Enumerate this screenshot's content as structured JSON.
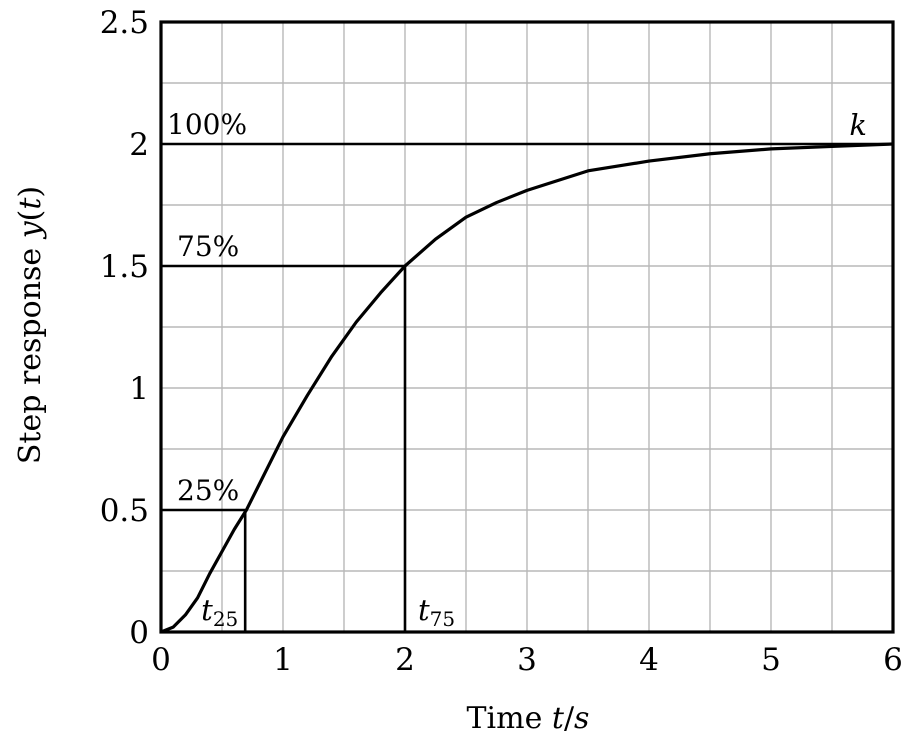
{
  "chart_data": {
    "type": "line",
    "title": "",
    "xlabel": {
      "prefix": "Time ",
      "var": "t",
      "sep": "/",
      "unit": "s"
    },
    "ylabel": {
      "prefix": "Step response ",
      "func": "y",
      "open": "(",
      "arg": "t",
      "close": ")"
    },
    "xlim": [
      0,
      6
    ],
    "ylim": [
      0,
      2.5
    ],
    "x_ticks": [
      "0",
      "1",
      "2",
      "3",
      "4",
      "5",
      "6"
    ],
    "y_ticks": [
      "0",
      "0.5",
      "1",
      "1.5",
      "2",
      "2.5"
    ],
    "grid": true,
    "grid_step": {
      "x": 0.5,
      "y": 0.25
    },
    "series": [
      {
        "x": [
          0,
          0.1,
          0.2,
          0.3,
          0.4,
          0.5,
          0.6,
          0.7,
          0.8,
          1.0,
          1.2,
          1.4,
          1.6,
          1.8,
          2.0,
          2.25,
          2.5,
          2.75,
          3.0,
          3.5,
          4.0,
          4.5,
          5.0,
          5.5,
          6.0
        ],
        "y": [
          0,
          0.02,
          0.07,
          0.14,
          0.24,
          0.33,
          0.42,
          0.5,
          0.6,
          0.8,
          0.97,
          1.13,
          1.27,
          1.39,
          1.5,
          1.61,
          1.7,
          1.76,
          1.81,
          1.89,
          1.93,
          1.96,
          1.98,
          1.99,
          2.0
        ]
      }
    ],
    "reference_lines": [
      {
        "label": "100%",
        "y": 2.0
      },
      {
        "label": "75%",
        "y": 1.5,
        "x_end": 2.0
      },
      {
        "label": "25%",
        "y": 0.5,
        "x_end": 0.69
      }
    ],
    "markers": [
      {
        "base": "t",
        "sub": "25",
        "x": 0.69
      },
      {
        "base": "t",
        "sub": "75",
        "x": 2.0
      }
    ],
    "gain_label": "k"
  }
}
